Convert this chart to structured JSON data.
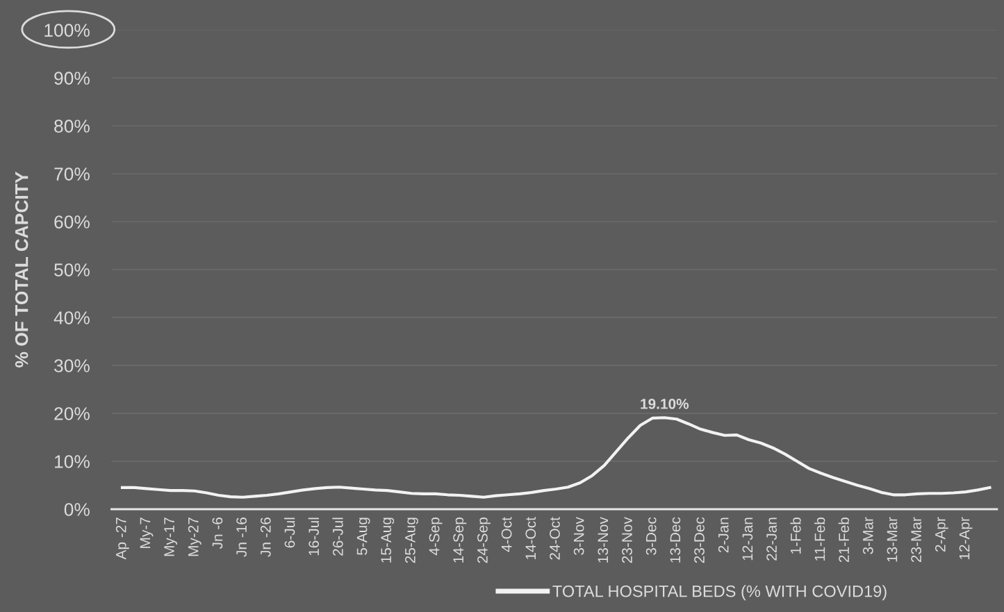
{
  "chart_data": {
    "type": "line",
    "ylabel": "% OF TOTAL CAPCITY",
    "categories": [
      "Ap -27",
      null,
      "My-7",
      null,
      "My-17",
      null,
      "My-27",
      null,
      "Jn -6",
      null,
      "Jn -16",
      null,
      "Jn -26",
      null,
      "6-Jul",
      null,
      "16-Jul",
      null,
      "26-Jul",
      null,
      "5-Aug",
      null,
      "15-Aug",
      null,
      "25-Aug",
      null,
      "4-Sep",
      null,
      "14-Sep",
      null,
      "24-Sep",
      null,
      "4-Oct",
      null,
      "14-Oct",
      null,
      "24-Oct",
      null,
      "3-Nov",
      null,
      "13-Nov",
      null,
      "23-Nov",
      null,
      "3-Dec",
      null,
      "13-Dec",
      null,
      "23-Dec",
      null,
      "2-Jan",
      null,
      "12-Jan",
      null,
      "22-Jan",
      null,
      "1-Feb",
      null,
      "11-Feb",
      null,
      "21-Feb",
      null,
      "3-Mar",
      null,
      "13-Mar",
      null,
      "23-Mar",
      null,
      "2-Apr",
      null,
      "12-Apr",
      null,
      null
    ],
    "series": [
      {
        "name": "TOTAL HOSPITAL BEDS (% WITH COVID19)",
        "color": "#f2f2f2",
        "values": [
          4.5,
          4.5,
          4.3,
          4.1,
          3.9,
          3.9,
          3.8,
          3.4,
          2.9,
          2.6,
          2.5,
          2.7,
          2.9,
          3.2,
          3.6,
          4.0,
          4.3,
          4.5,
          4.6,
          4.4,
          4.2,
          4.0,
          3.9,
          3.6,
          3.3,
          3.2,
          3.2,
          3.0,
          2.9,
          2.7,
          2.5,
          2.8,
          3.0,
          3.2,
          3.5,
          3.9,
          4.2,
          4.6,
          5.5,
          7.0,
          9.1,
          12.0,
          14.9,
          17.5,
          19.0,
          19.1,
          18.8,
          17.8,
          16.7,
          16.0,
          15.4,
          15.5,
          14.5,
          13.8,
          12.8,
          11.5,
          10.0,
          8.5,
          7.5,
          6.6,
          5.8,
          5.0,
          4.3,
          3.5,
          3.0,
          3.0,
          3.2,
          3.3,
          3.3,
          3.4,
          3.6,
          4.0,
          4.5
        ],
        "value_labels": [
          null,
          null,
          null,
          null,
          null,
          null,
          null,
          null,
          null,
          null,
          null,
          null,
          null,
          null,
          null,
          null,
          null,
          null,
          null,
          null,
          null,
          null,
          null,
          null,
          null,
          null,
          null,
          null,
          null,
          null,
          null,
          null,
          null,
          null,
          null,
          null,
          null,
          null,
          null,
          null,
          null,
          null,
          null,
          null,
          null,
          "19.10%",
          null,
          null,
          null,
          null,
          null,
          null,
          null,
          null,
          null,
          null,
          null,
          null,
          null,
          null,
          null,
          null,
          null,
          null,
          null,
          null,
          null,
          null,
          null,
          null,
          null,
          null,
          null
        ]
      }
    ],
    "ylim": [
      0,
      100
    ],
    "yticks": [
      {
        "value": 0,
        "label": "0%"
      },
      {
        "value": 10,
        "label": "10%"
      },
      {
        "value": 20,
        "label": "20%"
      },
      {
        "value": 30,
        "label": "30%"
      },
      {
        "value": 40,
        "label": "40%"
      },
      {
        "value": 50,
        "label": "50%"
      },
      {
        "value": 60,
        "label": "60%"
      },
      {
        "value": 70,
        "label": "70%"
      },
      {
        "value": 80,
        "label": "80%"
      },
      {
        "value": 90,
        "label": "90%"
      },
      {
        "value": 100,
        "label": "100%"
      }
    ],
    "grid": "y",
    "legend": "bottom",
    "marker": "none",
    "line_style": "solid"
  }
}
